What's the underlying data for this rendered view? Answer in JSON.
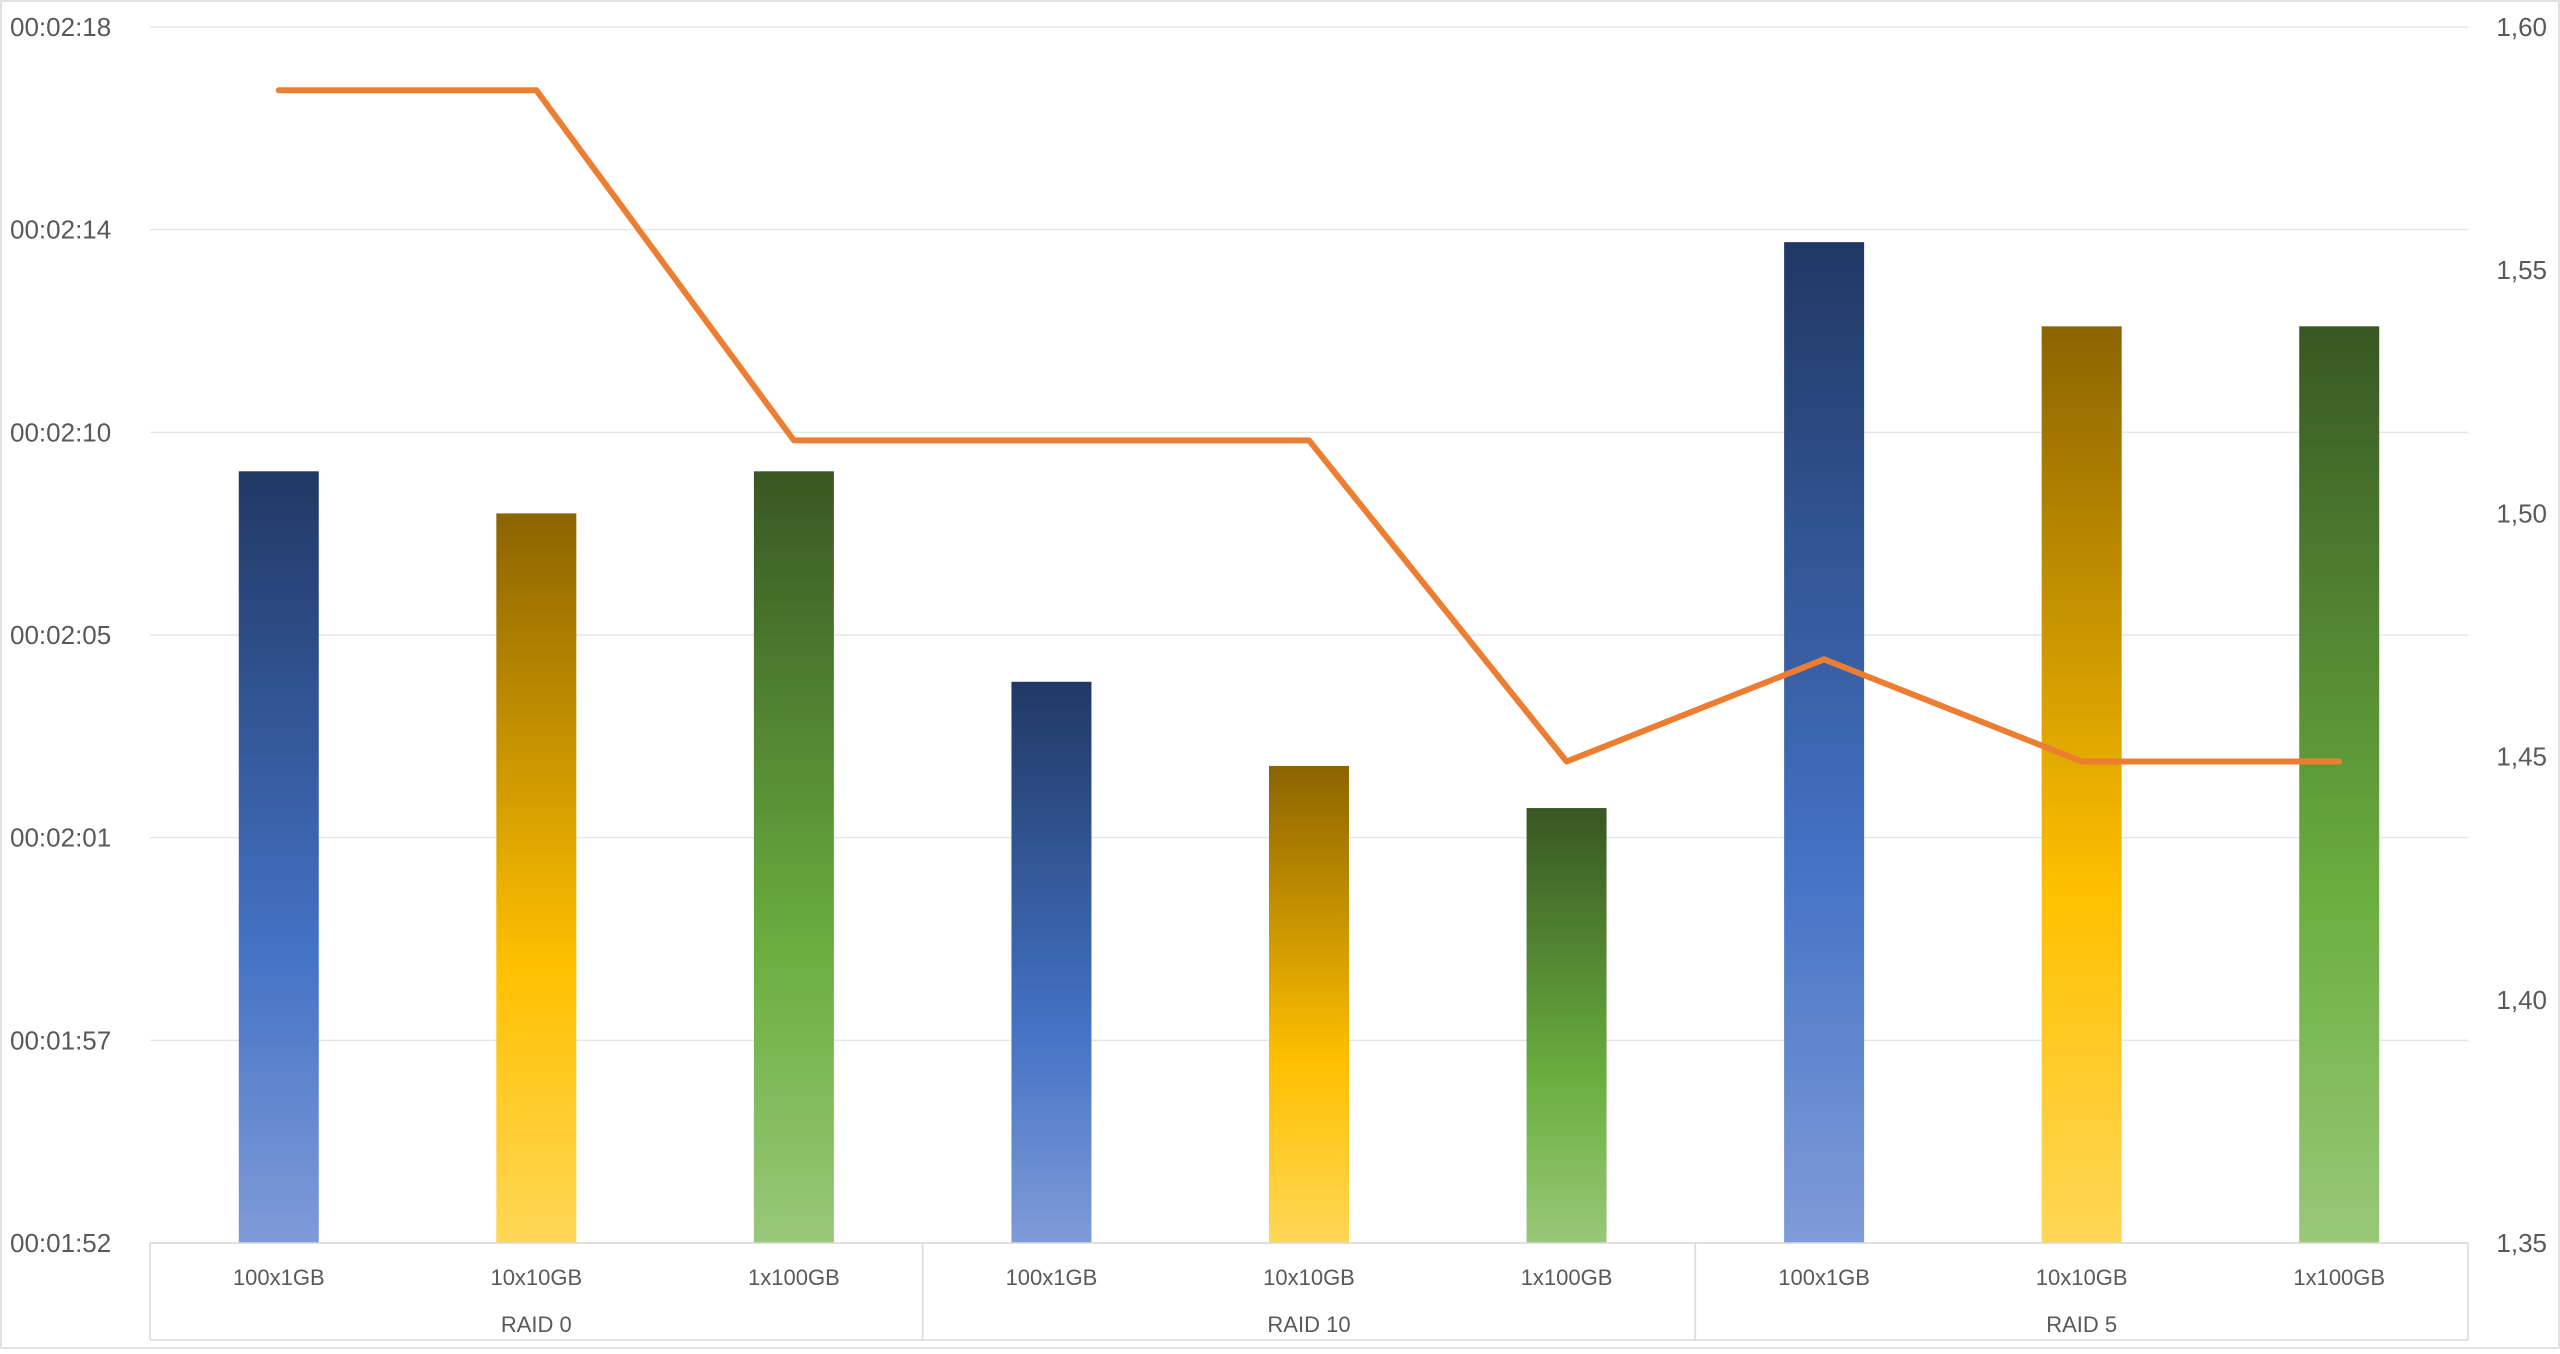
{
  "chart_data": {
    "type": "bar",
    "combo": "bar + line (secondary axis)",
    "title": "",
    "xlabel": "",
    "ylabel": "",
    "y2label": "",
    "groups": [
      {
        "label": "RAID 0",
        "categories": [
          "100x1GB",
          "10x10GB",
          "1x100GB"
        ]
      },
      {
        "label": "RAID 10",
        "categories": [
          "100x1GB",
          "10x10GB",
          "1x100GB"
        ]
      },
      {
        "label": "RAID 5",
        "categories": [
          "100x1GB",
          "10x10GB",
          "1x100GB"
        ]
      }
    ],
    "bars": {
      "values_seconds": [
        128.5,
        127.6,
        128.5,
        124.0,
        122.2,
        121.3,
        133.4,
        131.6,
        131.6
      ],
      "color_pattern": [
        "blue",
        "gold",
        "green"
      ]
    },
    "line": {
      "axis": "right",
      "values": [
        1.587,
        1.587,
        1.515,
        1.515,
        1.515,
        1.449,
        1.47,
        1.449,
        1.449
      ],
      "color": "#ED7D31"
    },
    "y_left": {
      "min_seconds": 112,
      "max_seconds": 138,
      "ticks": [
        {
          "value": 112,
          "label": "00:01:52"
        },
        {
          "value": 116.333,
          "label": "00:01:57"
        },
        {
          "value": 120.667,
          "label": "00:02:01"
        },
        {
          "value": 125,
          "label": "00:02:05"
        },
        {
          "value": 129.333,
          "label": "00:02:10"
        },
        {
          "value": 133.667,
          "label": "00:02:14"
        },
        {
          "value": 138,
          "label": "00:02:18"
        }
      ]
    },
    "y_right": {
      "min": 1.35,
      "max": 1.6,
      "ticks": [
        {
          "value": 1.35,
          "label": "1,35"
        },
        {
          "value": 1.4,
          "label": "1,40"
        },
        {
          "value": 1.45,
          "label": "1,45"
        },
        {
          "value": 1.5,
          "label": "1,50"
        },
        {
          "value": 1.55,
          "label": "1,55"
        },
        {
          "value": 1.6,
          "label": "1,60"
        }
      ]
    },
    "grid": true,
    "legend": "none",
    "colors": {
      "blue_top": "#203864",
      "blue_mid": "#4472C4",
      "blue_bottom": "#7F9BD8",
      "gold_top": "#8C6400",
      "gold_mid": "#FFC000",
      "gold_bottom": "#FFD757",
      "green_top": "#385723",
      "green_mid": "#6AAE3F",
      "green_bottom": "#99C878",
      "line": "#ED7D31"
    }
  }
}
